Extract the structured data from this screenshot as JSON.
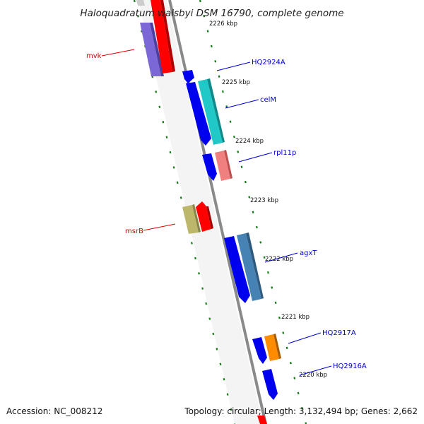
{
  "title": "Haloquadratum walsbyi DSM 16790, complete genome",
  "footer": {
    "accession": "Accession: NC_008212",
    "topology": "Topology: circular; Length: 3,132,494 bp; Genes: 2,662"
  },
  "ticks": [
    "2226 kbp",
    "2225 kbp",
    "2224 kbp",
    "2223 kbp",
    "2222 kbp",
    "2221 kbp",
    "2220 kbp"
  ],
  "genes": [
    {
      "name": "mvk",
      "strand": "minus",
      "color": "#ff0000"
    },
    {
      "name": "",
      "strand": "minus",
      "color": "#7b68d6"
    },
    {
      "name": "HQ2924A",
      "strand": "plus",
      "color": "#0000ee"
    },
    {
      "name": "celM",
      "strand": "plus",
      "color": "#20c8c8"
    },
    {
      "name": "",
      "strand": "plus",
      "color": "#0000ee"
    },
    {
      "name": "rpl11p",
      "strand": "plus",
      "color": "#f08080"
    },
    {
      "name": "",
      "strand": "plus",
      "color": "#0000ee"
    },
    {
      "name": "msrB",
      "strand": "minus",
      "color": "#ff0000"
    },
    {
      "name": "",
      "strand": "minus",
      "color": "#bdb76b"
    },
    {
      "name": "agxT",
      "strand": "plus",
      "color": "#4682b4"
    },
    {
      "name": "",
      "strand": "plus",
      "color": "#0000ee"
    },
    {
      "name": "HQ2917A",
      "strand": "plus",
      "color": "#ff8c00"
    },
    {
      "name": "",
      "strand": "plus",
      "color": "#0000ee"
    },
    {
      "name": "HQ2916A",
      "strand": "plus",
      "color": "#0000ee"
    }
  ],
  "colors": {
    "backbone": "#8a8a8a",
    "gc_dots": "#1a7a1a",
    "plus_label": "#0000cc",
    "minus_label": "#dd0000"
  }
}
